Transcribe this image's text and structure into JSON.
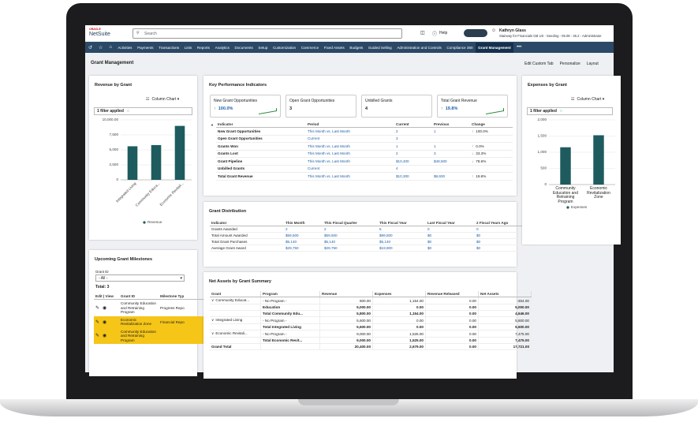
{
  "header": {
    "logo_top": "ORACLE",
    "logo": "NetSuite",
    "search": "Search",
    "help": "Help",
    "user": "Kathryn Glass",
    "account": "Stairway for Financials GB US - Seeding - 05.08 - 25.2 - Administrator"
  },
  "nav": [
    "Activities",
    "Payments",
    "Transactions",
    "Lists",
    "Reports",
    "Analytics",
    "Documents",
    "Setup",
    "Customization",
    "Commerce",
    "Fixed Assets",
    "Budgets",
    "Guided Selling",
    "Administration and Controls",
    "Compliance 360",
    "Grant Management"
  ],
  "nav_active": 15,
  "page": {
    "title": "Grant Management",
    "actions": [
      "Edit Custom Tab",
      "Personalize",
      "Layout"
    ]
  },
  "revenue_chart": {
    "type": "bar",
    "title": "Revenue by Grant",
    "chart_type": "Column Chart",
    "filter": "1 filter applied",
    "categories": [
      "Integrated Living",
      "Community Educa...",
      "Economic Revitali..."
    ],
    "series": [
      {
        "name": "Revenue",
        "color": "#1e5b5e",
        "values": [
          5600,
          5800,
          9000
        ]
      }
    ],
    "ylim": [
      0,
      10000
    ],
    "yticks": [
      0,
      {
        "value": 2500,
        "label": "2,500"
      },
      {
        "value": 5000,
        "label": "5,000"
      },
      {
        "value": 7500,
        "label": "7,500"
      },
      {
        "value": 10000,
        "label": "10,000.00"
      }
    ]
  },
  "expenses_chart": {
    "type": "bar",
    "title": "Expenses by Grant",
    "chart_type": "Column Chart",
    "filter": "1 filter applied",
    "categories": [
      "Community Education and Retraining Program",
      "Economic Revitalization Zone"
    ],
    "series": [
      {
        "name": "Expenses",
        "color": "#1e5b5e",
        "values": [
          1154,
          1525
        ]
      }
    ],
    "ylim": [
      0,
      2000
    ],
    "yticks": [
      0,
      500,
      {
        "value": 1000,
        "label": "1,000"
      },
      {
        "value": 1500,
        "label": "1,500"
      },
      {
        "value": 2000,
        "label": "2,000"
      }
    ]
  },
  "kpi": {
    "title": "Key Performance Indicators",
    "cards": [
      {
        "label": "New Grant Opportunities",
        "value": "100.0%",
        "trend": "up"
      },
      {
        "label": "Open Grant Opportunities",
        "value": "3",
        "trend": null
      },
      {
        "label": "Unbilled Grants",
        "value": "4",
        "trend": null
      },
      {
        "label": "Total Grant Revenue",
        "value": "19.8%",
        "trend": "up"
      }
    ],
    "columns": [
      "Indicator",
      "Period",
      "Current",
      "Previous",
      "Change"
    ],
    "rows": [
      [
        "New Grant Opportunities",
        "This Month vs. Last Month",
        "2",
        "1",
        "100.0%"
      ],
      [
        "Open Grant Opportunities",
        "Current",
        "3",
        null,
        null
      ],
      [
        "Grants Won",
        "This Month vs. Last Month",
        "1",
        "1",
        "0.0%"
      ],
      [
        "Grants Lost",
        "This Month vs. Last Month",
        "2",
        "3",
        "33.3%"
      ],
      [
        "Grant Pipeline",
        "This Month vs. Last Month",
        "$10,400",
        "$48,500",
        "78.6%"
      ],
      [
        "Unbilled Grants",
        "Current",
        "4",
        null,
        null
      ],
      [
        "Total Grant Revenue",
        "This Month vs. Last Month",
        "$10,300",
        "$8,600",
        "19.8%"
      ]
    ],
    "trends": [
      "up",
      null,
      "up",
      "down",
      "down",
      null,
      "up"
    ]
  },
  "distribution": {
    "title": "Grant Distribution",
    "columns": [
      "Indicator",
      "This Month",
      "This Fiscal Quarter",
      "This Fiscal Year",
      "Last Fiscal Year",
      "2 Fiscal Years Ago"
    ],
    "rows": [
      [
        "Grants Awarded",
        "2",
        "2",
        "5",
        "0",
        "0"
      ],
      [
        "Total Amount Awarded",
        "$59,500",
        "$59,500",
        "$99,500",
        "$0",
        "$0"
      ],
      [
        "Total Grant Purchases",
        "$5,140",
        "$5,140",
        "$5,140",
        "$0",
        "$0"
      ],
      [
        "Average Grant Award",
        "$29,750",
        "$29,750",
        "$19,900",
        "$0",
        "$0"
      ]
    ]
  },
  "net_assets": {
    "title": "Net Assets by Grant Summary",
    "columns": [
      "Grant",
      "Program",
      "Revenue",
      "Expenses",
      "Revenue Released",
      "Net Assets"
    ],
    "rows": [
      [
        "Community Educat...",
        "- No Program -",
        "800.00",
        "1,154.00",
        "0.00",
        "-354.00"
      ],
      [
        null,
        "Education",
        "5,000.00",
        "0.00",
        "0.00",
        "5,000.00"
      ],
      [
        null,
        "Total Community Edu...",
        "5,800.00",
        "1,154.00",
        "0.00",
        "4,646.00"
      ],
      [
        "Integrated Living",
        "- No Program -",
        "5,600.00",
        "0.00",
        "0.00",
        "5,600.00"
      ],
      [
        null,
        "Total Integrated Living",
        "5,600.00",
        "0.00",
        "0.00",
        "5,600.00"
      ],
      [
        "Economic Revitali...",
        "- No Program -",
        "9,000.00",
        "1,525.00",
        "0.00",
        "7,475.00"
      ],
      [
        null,
        "Total Economic Revit...",
        "9,000.00",
        "1,525.00",
        "0.00",
        "7,475.00"
      ],
      [
        "Grand Total",
        null,
        "20,400.00",
        "2,679.00",
        "0.00",
        "17,721.00"
      ]
    ]
  },
  "milestones": {
    "title": "Upcoming Grant Milestones",
    "filter_label": "Grant ID",
    "filter_value": "- All -",
    "total": "Total: 3",
    "columns": [
      "Edit | View",
      "Grant ID",
      "Milestone Typ"
    ],
    "rows": [
      {
        "grant": "Community Education and Retraining Program",
        "type": "Progress Repo",
        "highlight": false
      },
      {
        "grant": "Economic Revitalization Zone",
        "type": "Financial Repo",
        "highlight": true
      },
      {
        "grant": "Community Education and Retraining Program",
        "type": null,
        "highlight": true
      }
    ]
  }
}
